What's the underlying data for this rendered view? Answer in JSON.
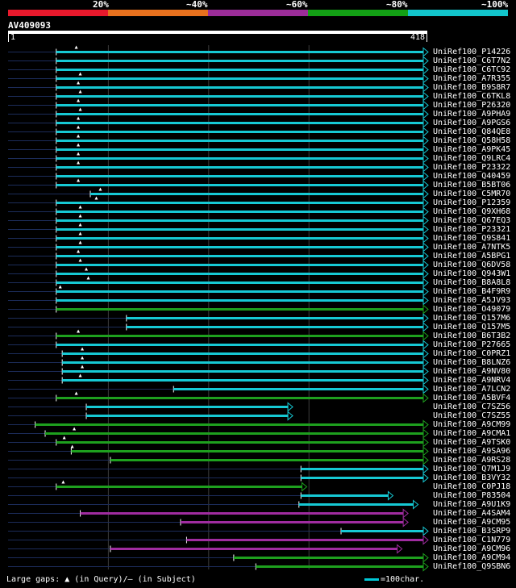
{
  "legend": [
    {
      "label": "20%",
      "color": "#e8192c"
    },
    {
      "label": "~40%",
      "color": "#e8711e"
    },
    {
      "label": "~60%",
      "color": "#9c2d99"
    },
    {
      "label": "~80%",
      "color": "#13a015"
    },
    {
      "label": "~100%",
      "color": "#12c5cc"
    }
  ],
  "query": {
    "name": "AV409093",
    "start": "1",
    "end": "418",
    "length": 418
  },
  "footer": {
    "gaps_label": "Large gaps: ",
    "query_gap": " (in Query)/",
    "subject_gap": " (in Subject)",
    "scale_text": "=100char."
  },
  "chart_data": {
    "type": "alignment-overview",
    "query_length": 418,
    "hits": [
      {
        "name": "UniRef100_P14226",
        "start": 48,
        "end": 418,
        "color": "cyan",
        "qgap": 68
      },
      {
        "name": "UniRef100_C6T7N2",
        "start": 48,
        "end": 418,
        "color": "cyan"
      },
      {
        "name": "UniRef100_C6TC92",
        "start": 48,
        "end": 418,
        "color": "cyan"
      },
      {
        "name": "UniRef100_A7R355",
        "start": 48,
        "end": 418,
        "color": "cyan",
        "qgap": 72
      },
      {
        "name": "UniRef100_B9S8R7",
        "start": 48,
        "end": 418,
        "color": "cyan",
        "qgap": 70
      },
      {
        "name": "UniRef100_C6TKL8",
        "start": 48,
        "end": 418,
        "color": "cyan",
        "qgap": 72
      },
      {
        "name": "UniRef100_P26320",
        "start": 48,
        "end": 418,
        "color": "cyan",
        "qgap": 70
      },
      {
        "name": "UniRef100_A9PHA9",
        "start": 48,
        "end": 418,
        "color": "cyan",
        "qgap": 72
      },
      {
        "name": "UniRef100_A9PGS6",
        "start": 48,
        "end": 418,
        "color": "cyan",
        "qgap": 70
      },
      {
        "name": "UniRef100_Q84QE8",
        "start": 48,
        "end": 418,
        "color": "cyan",
        "qgap": 70
      },
      {
        "name": "UniRef100_Q58H58",
        "start": 48,
        "end": 418,
        "color": "cyan",
        "qgap": 70
      },
      {
        "name": "UniRef100_A9PK45",
        "start": 48,
        "end": 418,
        "color": "cyan",
        "qgap": 70
      },
      {
        "name": "UniRef100_Q9LRC4",
        "start": 48,
        "end": 418,
        "color": "cyan",
        "qgap": 70
      },
      {
        "name": "UniRef100_P23322",
        "start": 48,
        "end": 418,
        "color": "cyan",
        "qgap": 70
      },
      {
        "name": "UniRef100_Q40459",
        "start": 48,
        "end": 418,
        "color": "cyan"
      },
      {
        "name": "UniRef100_B5BT06",
        "start": 48,
        "end": 418,
        "color": "cyan",
        "qgap": 70
      },
      {
        "name": "UniRef100_C5MR70",
        "start": 82,
        "end": 418,
        "color": "cyan",
        "qgap": 92
      },
      {
        "name": "UniRef100_P12359",
        "start": 48,
        "end": 418,
        "color": "cyan",
        "qgap": 88
      },
      {
        "name": "UniRef100_Q9XH68",
        "start": 48,
        "end": 418,
        "color": "cyan",
        "qgap": 72
      },
      {
        "name": "UniRef100_Q67EQ3",
        "start": 48,
        "end": 418,
        "color": "cyan",
        "qgap": 72
      },
      {
        "name": "UniRef100_P23321",
        "start": 48,
        "end": 418,
        "color": "cyan",
        "qgap": 72
      },
      {
        "name": "UniRef100_Q9S841",
        "start": 48,
        "end": 418,
        "color": "cyan",
        "qgap": 72
      },
      {
        "name": "UniRef100_A7NTK5",
        "start": 48,
        "end": 418,
        "color": "cyan",
        "qgap": 72
      },
      {
        "name": "UniRef100_A5BPG1",
        "start": 48,
        "end": 418,
        "color": "cyan",
        "qgap": 70
      },
      {
        "name": "UniRef100_Q6DV58",
        "start": 48,
        "end": 418,
        "color": "cyan",
        "qgap": 72
      },
      {
        "name": "UniRef100_Q943W1",
        "start": 48,
        "end": 418,
        "color": "cyan",
        "qgap": 78
      },
      {
        "name": "UniRef100_B8A8L8",
        "start": 48,
        "end": 418,
        "color": "cyan",
        "qgap": 80
      },
      {
        "name": "UniRef100_B4F9R9",
        "start": 48,
        "end": 418,
        "color": "cyan",
        "qgap": 52
      },
      {
        "name": "UniRef100_A5JV93",
        "start": 48,
        "end": 418,
        "color": "cyan"
      },
      {
        "name": "UniRef100_O49079",
        "start": 48,
        "end": 418,
        "color": "green"
      },
      {
        "name": "UniRef100_Q157M6",
        "start": 118,
        "end": 418,
        "color": "cyan"
      },
      {
        "name": "UniRef100_Q157M5",
        "start": 118,
        "end": 418,
        "color": "cyan"
      },
      {
        "name": "UniRef100_B6T3B2",
        "start": 48,
        "end": 418,
        "color": "green",
        "qgap": 70
      },
      {
        "name": "UniRef100_P27665",
        "start": 48,
        "end": 418,
        "color": "cyan"
      },
      {
        "name": "UniRef100_C0PRZ1",
        "start": 54,
        "end": 418,
        "color": "cyan",
        "qgap": 74
      },
      {
        "name": "UniRef100_B8LNZ6",
        "start": 54,
        "end": 418,
        "color": "cyan",
        "qgap": 74
      },
      {
        "name": "UniRef100_A9NV80",
        "start": 54,
        "end": 418,
        "color": "cyan",
        "qgap": 74
      },
      {
        "name": "UniRef100_A9NRV4",
        "start": 54,
        "end": 418,
        "color": "cyan",
        "qgap": 72
      },
      {
        "name": "UniRef100_A7LCN2",
        "start": 165,
        "end": 418,
        "color": "cyan"
      },
      {
        "name": "UniRef100_A5BVF4",
        "start": 48,
        "end": 418,
        "color": "green",
        "qgap": 68
      },
      {
        "name": "UniRef100_C7SZ56",
        "start": 78,
        "end": 283,
        "color": "cyan"
      },
      {
        "name": "UniRef100_C7SZ55",
        "start": 78,
        "end": 283,
        "color": "cyan"
      },
      {
        "name": "UniRef100_A9CM99",
        "start": 27,
        "end": 418,
        "color": "green"
      },
      {
        "name": "UniRef100_A9CMA1",
        "start": 37,
        "end": 418,
        "color": "green",
        "qgap": 66
      },
      {
        "name": "UniRef100_A9TSK0",
        "start": 48,
        "end": 418,
        "color": "green",
        "qgap": 56
      },
      {
        "name": "UniRef100_A9SA96",
        "start": 63,
        "end": 418,
        "color": "green",
        "qgap": 64
      },
      {
        "name": "UniRef100_A9RS28",
        "start": 102,
        "end": 418,
        "color": "green"
      },
      {
        "name": "UniRef100_Q7M1J9",
        "start": 292,
        "end": 418,
        "color": "cyan"
      },
      {
        "name": "UniRef100_B3VY32",
        "start": 292,
        "end": 418,
        "color": "cyan"
      },
      {
        "name": "UniRef100_C0PJ18",
        "start": 48,
        "end": 297,
        "color": "green",
        "qgap": 55
      },
      {
        "name": "UniRef100_P83504",
        "start": 292,
        "end": 383,
        "color": "cyan"
      },
      {
        "name": "UniRef100_A9U1K9",
        "start": 290,
        "end": 408,
        "color": "cyan"
      },
      {
        "name": "UniRef100_A4SAM4",
        "start": 72,
        "end": 398,
        "color": "magenta"
      },
      {
        "name": "UniRef100_A9CM95",
        "start": 172,
        "end": 398,
        "color": "magenta"
      },
      {
        "name": "UniRef100_B3SRP9",
        "start": 332,
        "end": 418,
        "color": "cyan"
      },
      {
        "name": "UniRef100_C1N779",
        "start": 178,
        "end": 418,
        "color": "magenta"
      },
      {
        "name": "UniRef100_A9CM96",
        "start": 102,
        "end": 392,
        "color": "magenta"
      },
      {
        "name": "UniRef100_A9CM94",
        "start": 225,
        "end": 418,
        "color": "green"
      },
      {
        "name": "UniRef100_Q9SBN6",
        "start": 247,
        "end": 418,
        "color": "green"
      }
    ]
  }
}
